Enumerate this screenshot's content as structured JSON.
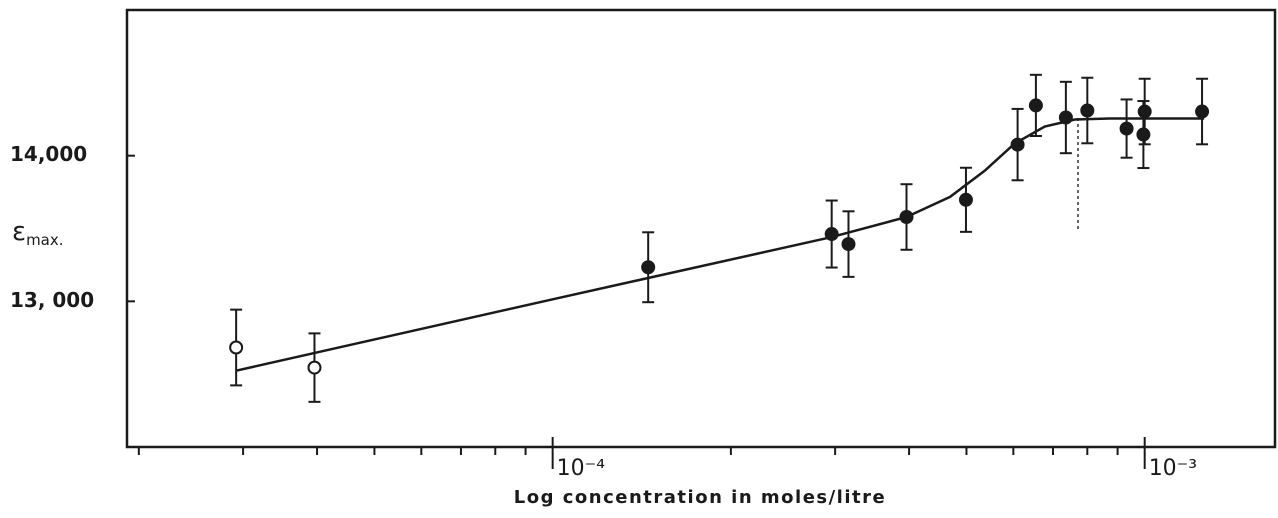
{
  "chart_data": {
    "type": "scatter",
    "x_label": "Log concentration in  moles/litre",
    "y_label": {
      "symbol": "ε",
      "subscript": "max."
    },
    "xscale": "log",
    "xlim": [
      1.91e-05,
      0.00166
    ],
    "xticks": [
      {
        "value": 0.0001,
        "label": "10⁻⁴"
      },
      {
        "value": 0.001,
        "label": "10⁻³"
      }
    ],
    "xminorticks": [
      2e-05,
      3e-05,
      4e-05,
      5e-05,
      6e-05,
      7e-05,
      8e-05,
      9e-05,
      0.0002,
      0.0003,
      0.0004,
      0.0005,
      0.0006,
      0.0007,
      0.0008,
      0.0009
    ],
    "ylim": [
      12000,
      15000
    ],
    "yticks": [
      {
        "value": 13000,
        "label": "13, 000"
      },
      {
        "value": 14000,
        "label": "14,000"
      }
    ],
    "color": "#1a1a1a",
    "series": [
      {
        "x": [
          2.92e-05,
          3.96e-05,
          0.000145,
          0.000296,
          0.000316,
          0.000396,
          0.000499,
          0.00061,
          0.000655,
          0.000736,
          0.0008,
          0.000932,
          0.001,
          0.000995,
          0.00125
        ],
        "values": [
          12683,
          12545,
          13234,
          13462,
          13393,
          13579,
          13697,
          14076,
          14345,
          14262,
          14310,
          14186,
          14303,
          14145,
          14303
        ],
        "errors": [
          260,
          235,
          240,
          230,
          225,
          225,
          220,
          245,
          210,
          245,
          225,
          200,
          225,
          230,
          225
        ],
        "filled": [
          false,
          false,
          true,
          true,
          true,
          true,
          true,
          true,
          true,
          true,
          true,
          true,
          true,
          true,
          true
        ]
      }
    ],
    "fit": {
      "x": [
        2.92e-05,
        0.0001,
        0.000296,
        0.000396,
        0.000469,
        0.000537,
        0.000603,
        0.000678,
        0.000762,
        0.000873,
        0.00126
      ],
      "values": [
        12524,
        13014,
        13441,
        13579,
        13717,
        13897,
        14083,
        14200,
        14248,
        14255,
        14255
      ]
    }
  }
}
